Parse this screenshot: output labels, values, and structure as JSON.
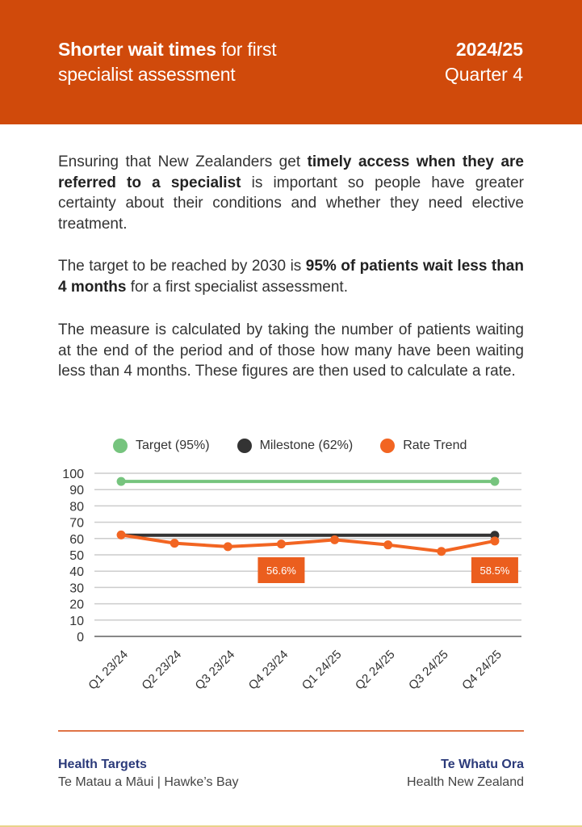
{
  "header": {
    "title_bold": "Shorter wait times",
    "title_rest_line1": " for first",
    "title_line2": "specialist assessment",
    "year": "2024/25",
    "quarter": "Quarter 4",
    "background_color": "#D04A0B"
  },
  "body": {
    "p1": {
      "pre": "Ensuring that New Zealanders get ",
      "bold": "timely access when they are referred to a specialist",
      "post": " is important so people have greater certainty about their conditions and whether they need elective treatment."
    },
    "p2": {
      "pre": "The target to be reached by 2030 is ",
      "bold": "95% of patients wait less than 4 months",
      "post": " for a first specialist assessment."
    },
    "p3": "The measure is calculated by taking the number of patients waiting at the end of the period and of those how many have been waiting less than 4 months. These figures are then used to calculate a rate."
  },
  "chart_data": {
    "type": "line",
    "title": "",
    "xlabel": "",
    "ylabel": "",
    "ylim": [
      0,
      100
    ],
    "yticks": [
      0,
      10,
      20,
      30,
      40,
      50,
      60,
      70,
      80,
      90,
      100
    ],
    "grid": true,
    "legend_position": "top",
    "categories": [
      "Q1 23/24",
      "Q2 23/24",
      "Q3 23/24",
      "Q4 23/24",
      "Q1 24/25",
      "Q2 24/25",
      "Q3 24/25",
      "Q4 24/25"
    ],
    "series": [
      {
        "name": "Target (95%)",
        "color": "#76C47E",
        "values": [
          95,
          95,
          95,
          95,
          95,
          95,
          95,
          95
        ],
        "markers": [
          0,
          7
        ]
      },
      {
        "name": "Milestone (62%)",
        "color": "#333333",
        "values": [
          62,
          62,
          62,
          62,
          62,
          62,
          62,
          62
        ],
        "markers": [
          7
        ]
      },
      {
        "name": "Rate Trend",
        "color": "#F26522",
        "values": [
          62.2,
          57.1,
          55.0,
          56.6,
          59.2,
          56.1,
          52.1,
          58.5
        ],
        "markers": [
          0,
          1,
          2,
          3,
          4,
          5,
          6,
          7
        ]
      }
    ],
    "annotations": [
      {
        "index": 3,
        "text": "56.6%"
      },
      {
        "index": 7,
        "text": "58.5%"
      }
    ]
  },
  "footer": {
    "left_org": "Health Targets",
    "left_sub": "Te Matau a Māui | Hawke’s Bay",
    "right_org": "Te Whatu Ora",
    "right_sub": "Health New Zealand",
    "rule_color": "#E07446"
  }
}
